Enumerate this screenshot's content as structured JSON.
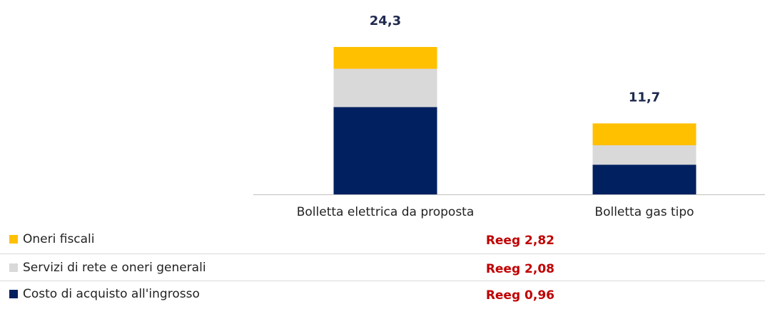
{
  "chart_data": {
    "type": "stacked_bar",
    "categories": [
      "Bolletta elettrica da proposta",
      "Bolletta gas tipo"
    ],
    "series": [
      {
        "name": "Costo di acquisto all'ingrosso",
        "color": "#002060",
        "values": [
          14.4,
          4.9
        ],
        "annotation": "Reeg 0,96"
      },
      {
        "name": "Servizi di rete e oneri generali",
        "color": "#d9d9d9",
        "values": [
          6.3,
          3.2
        ],
        "annotation": "Reeg 2,08"
      },
      {
        "name": "Oneri fiscali",
        "color": "#ffc000",
        "values": [
          3.6,
          3.6
        ],
        "annotation": "Reeg 2,82"
      }
    ],
    "totals": [
      24.3,
      11.7
    ],
    "total_labels": [
      "24,3",
      "11,7"
    ]
  }
}
